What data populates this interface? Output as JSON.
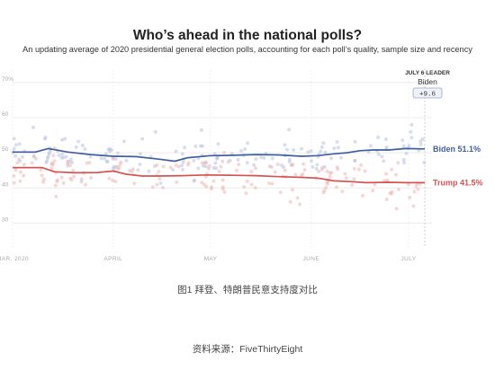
{
  "title": "Who’s ahead in the national polls?",
  "subtitle": "An updating average of 2020 presidential general election polls, accounting for each poll’s quality, sample size and recency",
  "caption": "图1 拜登、特朗普民意支持度对比",
  "source": "资料来源：FiveThirtyEight",
  "colors": {
    "biden": "#3f5f9e",
    "trump": "#d35454",
    "biden_dots": "#b9c3e0",
    "trump_dots": "#efb6b6",
    "grid": "#ececec",
    "axis_text": "#aaaaaa"
  },
  "chart_data": {
    "type": "line",
    "title": "Who’s ahead in the national polls?",
    "subtitle": "An updating average of 2020 presidential general election polls, accounting for each poll’s quality, sample size and recency",
    "xlabel": "",
    "ylabel": "",
    "x_range": [
      "2020-03-01",
      "2020-07-06"
    ],
    "ylim": [
      25,
      72
    ],
    "y_ticks": [
      {
        "value": 70,
        "label": "70%"
      },
      {
        "value": 60,
        "label": "60"
      },
      {
        "value": 50,
        "label": "50"
      },
      {
        "value": 40,
        "label": "40"
      },
      {
        "value": 30,
        "label": "30"
      }
    ],
    "x_ticks": [
      {
        "date": "2020-03-01",
        "label": "MAR. 2020"
      },
      {
        "date": "2020-04-01",
        "label": "APRIL"
      },
      {
        "date": "2020-05-01",
        "label": "MAY"
      },
      {
        "date": "2020-06-01",
        "label": "JUNE"
      },
      {
        "date": "2020-07-01",
        "label": "JULY"
      }
    ],
    "grid": true,
    "legend": "end-of-line labels",
    "series": [
      {
        "name": "Biden",
        "end_label": "Biden 51.1%",
        "x": [
          "2020-03-01",
          "2020-03-08",
          "2020-03-12",
          "2020-03-18",
          "2020-03-25",
          "2020-04-01",
          "2020-04-08",
          "2020-04-15",
          "2020-04-20",
          "2020-04-24",
          "2020-05-01",
          "2020-05-08",
          "2020-05-15",
          "2020-05-22",
          "2020-05-29",
          "2020-06-03",
          "2020-06-08",
          "2020-06-12",
          "2020-06-16",
          "2020-06-20",
          "2020-06-25",
          "2020-06-30",
          "2020-07-06"
        ],
        "values": [
          50.2,
          50.2,
          51.2,
          50.2,
          49.5,
          49.0,
          48.9,
          48.2,
          47.6,
          48.6,
          49.2,
          49.3,
          49.5,
          49.4,
          49.0,
          49.2,
          49.7,
          50.0,
          50.6,
          50.8,
          50.8,
          51.2,
          51.1
        ]
      },
      {
        "name": "Trump",
        "end_label": "Trump 41.5%",
        "x": [
          "2020-03-01",
          "2020-03-10",
          "2020-03-14",
          "2020-03-20",
          "2020-03-27",
          "2020-04-01",
          "2020-04-05",
          "2020-04-10",
          "2020-04-15",
          "2020-04-22",
          "2020-04-30",
          "2020-05-08",
          "2020-05-15",
          "2020-05-22",
          "2020-05-29",
          "2020-06-03",
          "2020-06-08",
          "2020-06-13",
          "2020-06-18",
          "2020-06-25",
          "2020-06-30",
          "2020-07-06"
        ],
        "values": [
          45.8,
          45.8,
          44.6,
          44.3,
          44.4,
          44.8,
          43.9,
          43.4,
          43.4,
          43.5,
          43.7,
          43.6,
          43.5,
          43.2,
          43.0,
          42.8,
          42.0,
          41.8,
          41.5,
          41.6,
          41.5,
          41.5
        ]
      }
    ],
    "leader": {
      "heading": "JULY 6 LEADER",
      "name": "Biden",
      "margin": "+9.6"
    }
  }
}
